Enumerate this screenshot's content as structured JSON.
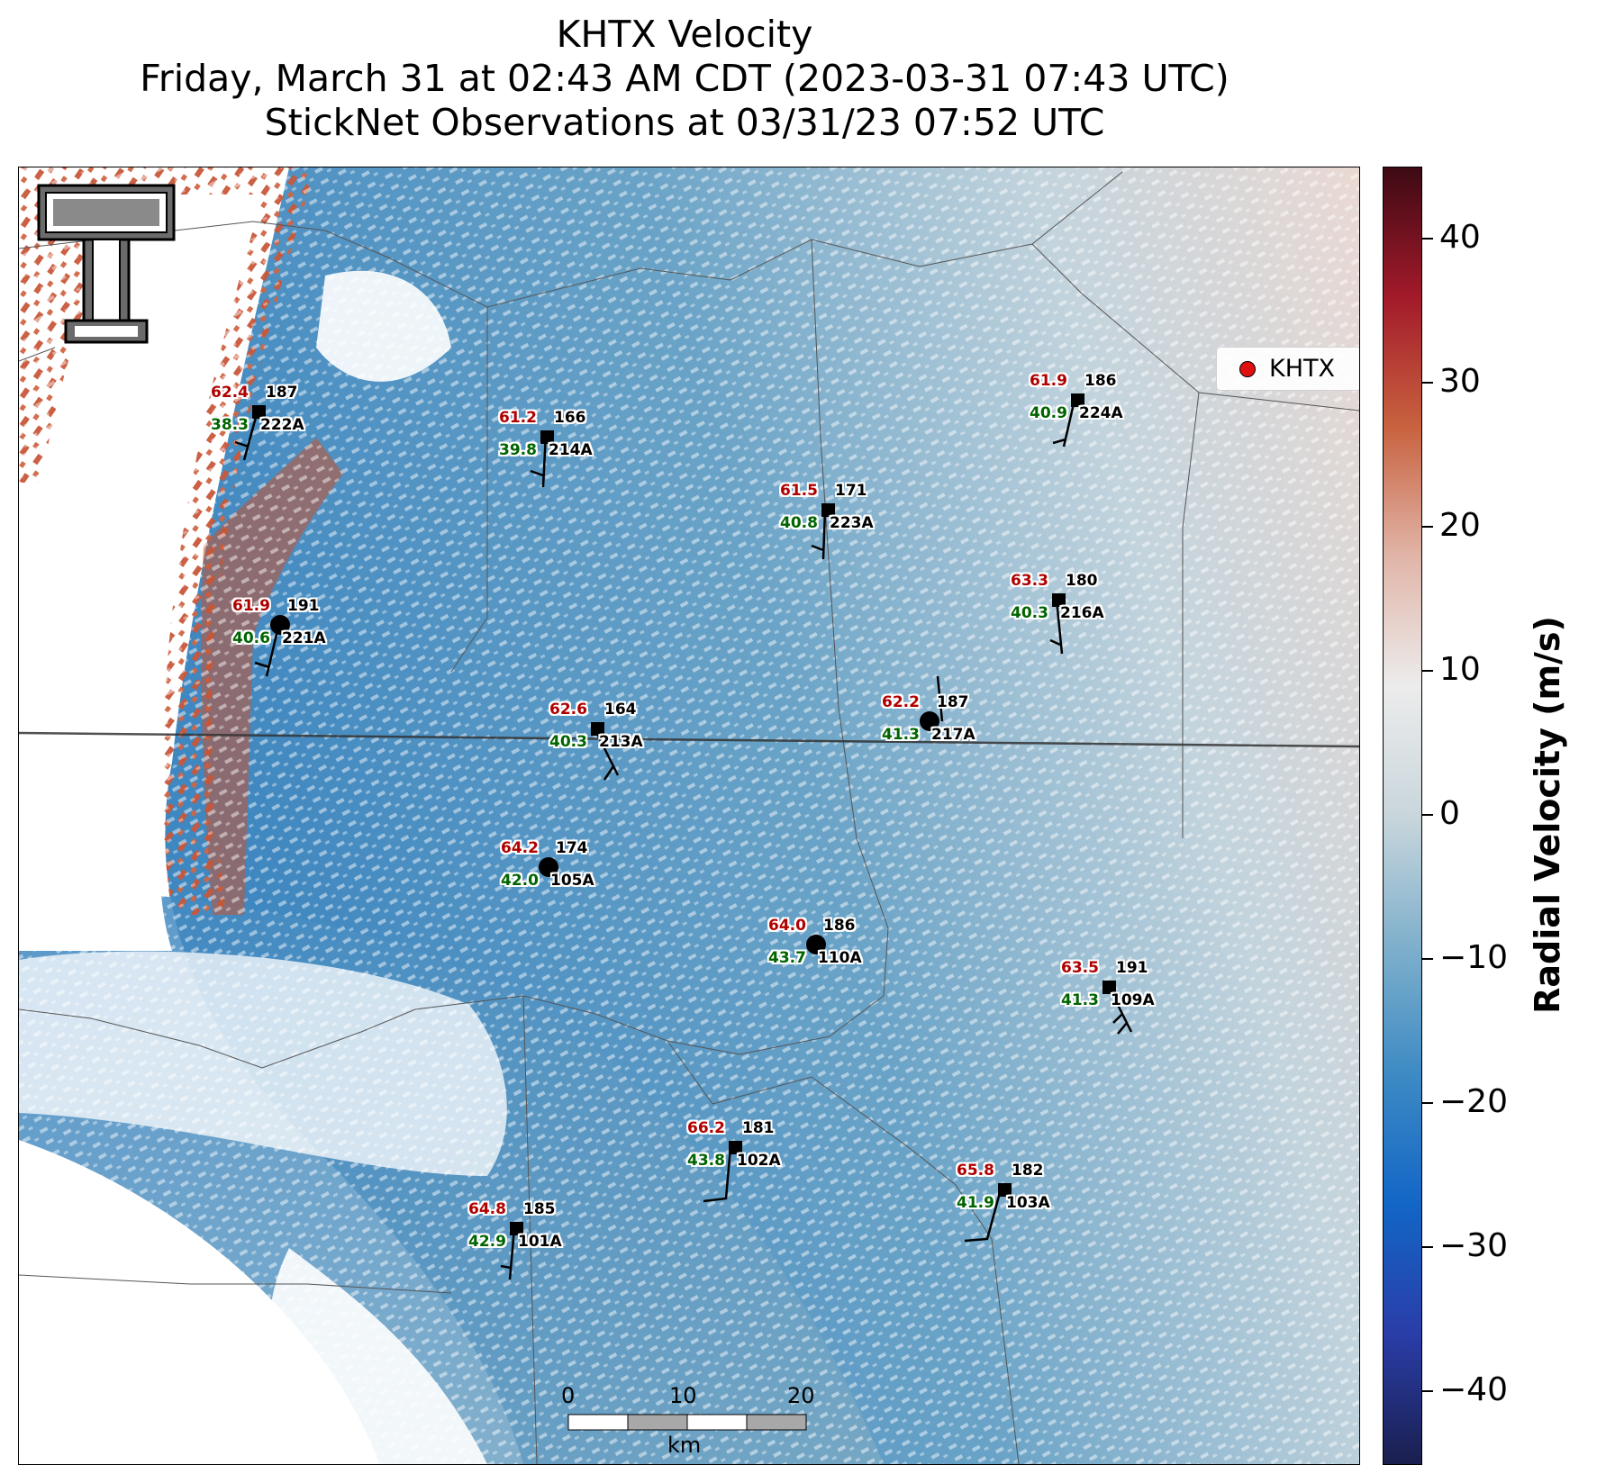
{
  "title": {
    "line1": "KHTX Velocity",
    "line2": "Friday, March 31 at 02:43 AM CDT (2023-03-31 07:43 UTC)",
    "line3": "StickNet Observations at 03/31/23 07:52 UTC"
  },
  "legend": {
    "label": "KHTX",
    "marker_color": "#e01010"
  },
  "colorbar": {
    "label": "Radial Velocity (m/s)",
    "range": [
      -45,
      45
    ],
    "ticks": [
      "40",
      "30",
      "20",
      "10",
      "0",
      "−10",
      "−20",
      "−30",
      "−40"
    ],
    "colors": [
      "#1a1f4e",
      "#2a3da8",
      "#1266c6",
      "#3d8ac4",
      "#7fb0cc",
      "#c9d6dc",
      "#ececec",
      "#e1b5a8",
      "#c8623f",
      "#a31a2a",
      "#3d0a14"
    ]
  },
  "scale_bar": {
    "ticks": [
      "0",
      "10",
      "20"
    ],
    "unit": "km"
  },
  "logo": {
    "name": "Texas Tech Double T logo"
  },
  "stations": [
    {
      "id": "222A",
      "temp": "62.4",
      "dew": "38.3",
      "pres": "187",
      "marker": "square"
    },
    {
      "id": "214A",
      "temp": "61.2",
      "dew": "39.8",
      "pres": "166",
      "marker": "square"
    },
    {
      "id": "224A",
      "temp": "61.9",
      "dew": "40.9",
      "pres": "186",
      "marker": "square"
    },
    {
      "id": "223A",
      "temp": "61.5",
      "dew": "40.8",
      "pres": "171",
      "marker": "square"
    },
    {
      "id": "221A",
      "temp": "61.9",
      "dew": "40.6",
      "pres": "191",
      "marker": "circle"
    },
    {
      "id": "216A",
      "temp": "63.3",
      "dew": "40.3",
      "pres": "180",
      "marker": "square"
    },
    {
      "id": "213A",
      "temp": "62.6",
      "dew": "40.3",
      "pres": "164",
      "marker": "square"
    },
    {
      "id": "217A",
      "temp": "62.2",
      "dew": "41.3",
      "pres": "187",
      "marker": "circle"
    },
    {
      "id": "105A",
      "temp": "64.2",
      "dew": "42.0",
      "pres": "174",
      "marker": "circle"
    },
    {
      "id": "110A",
      "temp": "64.0",
      "dew": "43.7",
      "pres": "186",
      "marker": "circle"
    },
    {
      "id": "109A",
      "temp": "63.5",
      "dew": "41.3",
      "pres": "191",
      "marker": "square"
    },
    {
      "id": "102A",
      "temp": "66.2",
      "dew": "43.8",
      "pres": "181",
      "marker": "square"
    },
    {
      "id": "103A",
      "temp": "65.8",
      "dew": "41.9",
      "pres": "182",
      "marker": "square"
    },
    {
      "id": "101A",
      "temp": "64.8",
      "dew": "42.9",
      "pres": "185",
      "marker": "square"
    }
  ]
}
